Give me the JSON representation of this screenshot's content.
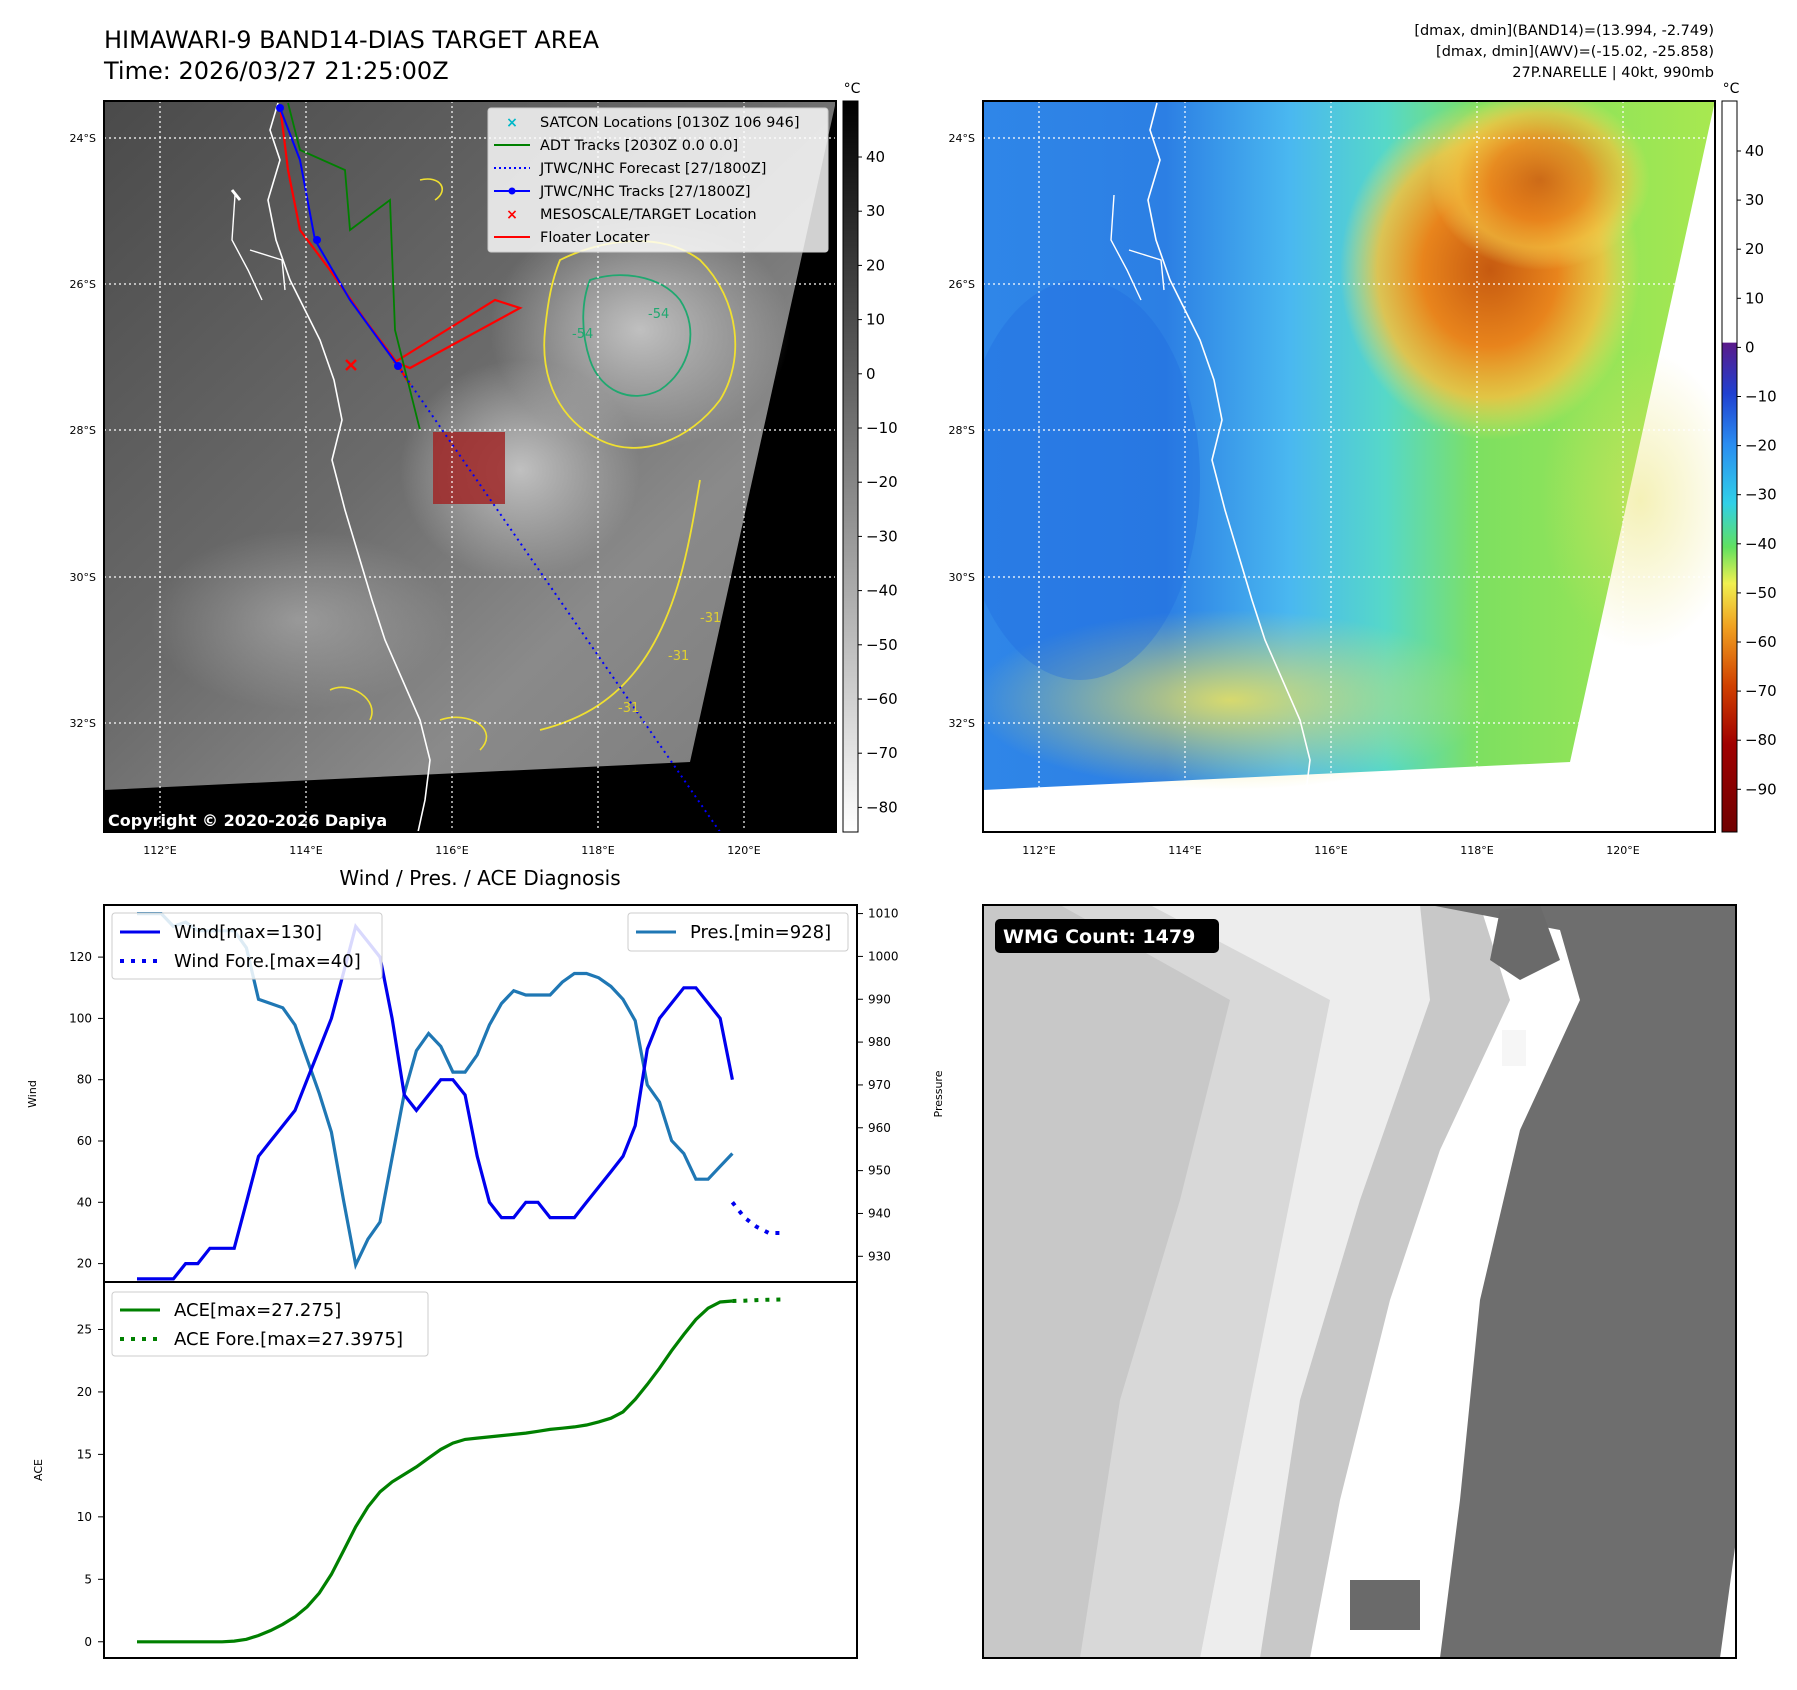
{
  "header": {
    "title": "HIMAWARI-9 BAND14-DIAS TARGET AREA",
    "time": "Time: 2026/03/27 21:25:00Z",
    "stats_band14": "[dmax, dmin](BAND14)=(13.994, -2.749)",
    "stats_awv": "[dmax, dmin](AWV)=(-15.02, -25.858)",
    "storm_info": "27P.NARELLE | 40kt, 990mb"
  },
  "map_axes": {
    "lon_ticks": [
      "112°E",
      "114°E",
      "116°E",
      "118°E",
      "120°E"
    ],
    "lat_ticks": [
      "24°S",
      "26°S",
      "28°S",
      "30°S",
      "32°S"
    ],
    "colorbar_unit": "°C",
    "ir_colorbar_ticks": [
      "40",
      "30",
      "20",
      "10",
      "0",
      "−10",
      "−20",
      "−30",
      "−40",
      "−50",
      "−60",
      "−70",
      "−80"
    ],
    "awv_colorbar_ticks": [
      "40",
      "30",
      "20",
      "10",
      "0",
      "−10",
      "−20",
      "−30",
      "−40",
      "−50",
      "−60",
      "−70",
      "−80",
      "−90"
    ]
  },
  "ir_map": {
    "legend": [
      {
        "label": "SATCON Locations [0130Z 106 946]",
        "color": "#00b8c8",
        "icon": "x-marker-icon"
      },
      {
        "label": "ADT Tracks [2030Z 0.0 0.0]",
        "color": "#008000",
        "icon": "line-icon"
      },
      {
        "label": "JTWC/NHC Forecast [27/1800Z]",
        "color": "#0000ff",
        "icon": "dotted-line-icon"
      },
      {
        "label": "JTWC/NHC Tracks [27/1800Z]",
        "color": "#0000ff",
        "icon": "line-dot-icon"
      },
      {
        "label": "MESOSCALE/TARGET Location",
        "color": "#ff0000",
        "icon": "x-marker-icon"
      },
      {
        "label": "Floater Locater",
        "color": "#ff0000",
        "icon": "line-icon"
      }
    ],
    "contour_labels": [
      "-54",
      "-54",
      "-31",
      "-31",
      "-31"
    ],
    "copyright": "Copyright © 2020-2026 Dapiya"
  },
  "wmg_panel": {
    "label": "WMG Count: 1479"
  },
  "chart_data": [
    {
      "type": "line",
      "title": "Wind / Pres. / ACE Diagnosis",
      "ylabel": "Wind",
      "y2label": "Pressure",
      "ylim": [
        14,
        137
      ],
      "y2lim": [
        924,
        1012
      ],
      "yticks": [
        "20",
        "40",
        "60",
        "80",
        "100",
        "120"
      ],
      "y2ticks": [
        "930",
        "940",
        "950",
        "960",
        "970",
        "980",
        "990",
        "1000",
        "1010"
      ],
      "x_index": [
        0,
        1,
        2,
        3,
        4,
        5,
        6,
        7,
        8,
        9,
        10,
        11,
        12,
        13,
        14,
        15,
        16,
        17,
        18,
        19,
        20,
        21,
        22,
        23,
        24,
        25,
        26,
        27,
        28,
        29,
        30,
        31,
        32,
        33,
        34,
        35,
        36,
        37,
        38,
        39,
        40,
        41,
        42,
        43,
        44,
        45,
        46,
        47,
        48,
        49
      ],
      "series": [
        {
          "name": "Wind[max=130]",
          "axis": "left",
          "style": "solid",
          "color": "#0000ee",
          "values": [
            15,
            15,
            15,
            15,
            20,
            20,
            25,
            25,
            25,
            40,
            55,
            60,
            65,
            70,
            80,
            90,
            100,
            115,
            130,
            125,
            120,
            100,
            75,
            70,
            75,
            80,
            80,
            75,
            55,
            40,
            35,
            35,
            40,
            40,
            35,
            35,
            35,
            40,
            45,
            50,
            55,
            65,
            90,
            100,
            105,
            110,
            110,
            105,
            100,
            80
          ]
        },
        {
          "name": "Wind Fore.[max=40]",
          "axis": "left",
          "style": "dotted",
          "color": "#0000ee",
          "values_x": [
            49,
            50,
            51,
            52,
            53
          ],
          "values": [
            40,
            35,
            32,
            30,
            30
          ]
        },
        {
          "name": "Pres.[min=928]",
          "axis": "right",
          "style": "solid",
          "color": "#1f77b4",
          "values": [
            1010,
            1010,
            1010,
            1007,
            1008,
            1006,
            1006,
            1006,
            1006,
            1002,
            990,
            989,
            988,
            984,
            976,
            968,
            959,
            943,
            928,
            934,
            938,
            953,
            968,
            978,
            982,
            979,
            973,
            973,
            977,
            984,
            989,
            992,
            991,
            991,
            991,
            994,
            996,
            996,
            995,
            993,
            990,
            985,
            970,
            966,
            957,
            954,
            948,
            948,
            951,
            954
          ]
        }
      ]
    },
    {
      "type": "line",
      "ylabel": "ACE",
      "ylim": [
        -1.3,
        28.8
      ],
      "yticks": [
        "0",
        "5",
        "10",
        "15",
        "20",
        "25"
      ],
      "x_index": [
        0,
        1,
        2,
        3,
        4,
        5,
        6,
        7,
        8,
        9,
        10,
        11,
        12,
        13,
        14,
        15,
        16,
        17,
        18,
        19,
        20,
        21,
        22,
        23,
        24,
        25,
        26,
        27,
        28,
        29,
        30,
        31,
        32,
        33,
        34,
        35,
        36,
        37,
        38,
        39,
        40,
        41,
        42,
        43,
        44,
        45,
        46,
        47,
        48,
        49
      ],
      "series": [
        {
          "name": "ACE[max=27.275]",
          "style": "solid",
          "color": "#008000",
          "values": [
            0,
            0,
            0,
            0,
            0,
            0,
            0,
            0,
            0.05,
            0.2,
            0.5,
            0.9,
            1.4,
            2.0,
            2.8,
            3.9,
            5.4,
            7.3,
            9.2,
            10.8,
            12.0,
            12.8,
            13.4,
            14.0,
            14.7,
            15.4,
            15.9,
            16.2,
            16.3,
            16.4,
            16.5,
            16.6,
            16.7,
            16.85,
            17.0,
            17.1,
            17.2,
            17.35,
            17.6,
            17.9,
            18.4,
            19.4,
            20.6,
            21.9,
            23.3,
            24.6,
            25.8,
            26.7,
            27.2,
            27.275
          ]
        },
        {
          "name": "ACE Fore.[max=27.3975]",
          "style": "dotted",
          "color": "#008000",
          "values_x": [
            49,
            50,
            51,
            52,
            53
          ],
          "values": [
            27.275,
            27.3,
            27.35,
            27.38,
            27.3975
          ]
        }
      ]
    }
  ]
}
